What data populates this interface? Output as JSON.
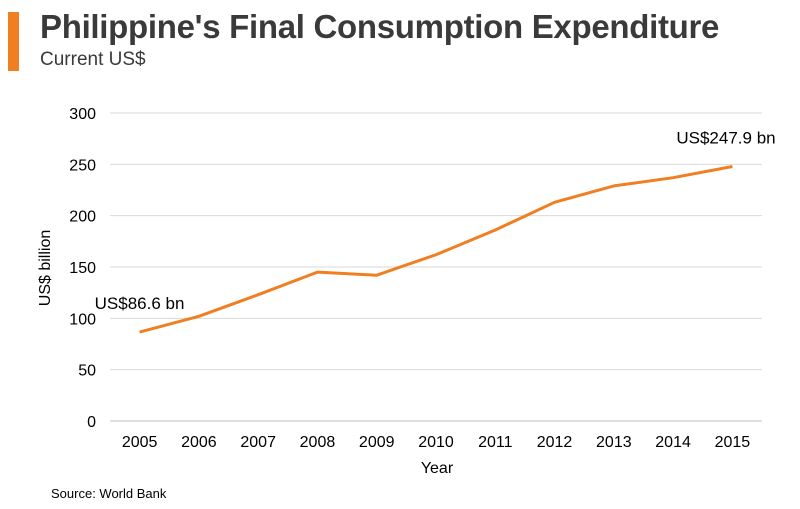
{
  "header": {
    "title": "Philippine's Final Consumption Expenditure",
    "subtitle": "Current US$"
  },
  "footer": {
    "source": "Source: World Bank"
  },
  "colors": {
    "accent": "#f07f22",
    "line": "#f07f22",
    "grid": "#d9d9d9",
    "axis": "#bfbfbf"
  },
  "chart_data": {
    "type": "line",
    "title": "Philippine's Final Consumption Expenditure",
    "subtitle": "Current US$",
    "xlabel": "Year",
    "ylabel": "US$ billion",
    "categories": [
      "2005",
      "2006",
      "2007",
      "2008",
      "2009",
      "2010",
      "2011",
      "2012",
      "2013",
      "2014",
      "2015"
    ],
    "series": [
      {
        "values": [
          86.6,
          102,
          123,
          145,
          142,
          162,
          186,
          213,
          229,
          237,
          247.9
        ]
      }
    ],
    "ylim": [
      0,
      300
    ],
    "yticks": [
      0,
      50,
      100,
      150,
      200,
      250,
      300
    ],
    "grid": true,
    "legend": "none",
    "annotations": [
      {
        "category": "2005",
        "text": "US$86.6 bn"
      },
      {
        "category": "2015",
        "text": "US$247.9 bn"
      }
    ]
  }
}
